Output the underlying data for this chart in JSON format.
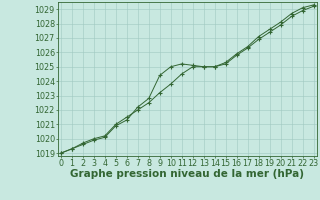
{
  "title": "Graphe pression niveau de la mer (hPa)",
  "hours": [
    0,
    1,
    2,
    3,
    4,
    5,
    6,
    7,
    8,
    9,
    10,
    11,
    12,
    13,
    14,
    15,
    16,
    17,
    18,
    19,
    20,
    21,
    22,
    23
  ],
  "ylim_min": 1018.8,
  "ylim_max": 1029.5,
  "yticks": [
    1019,
    1020,
    1021,
    1022,
    1023,
    1024,
    1025,
    1026,
    1027,
    1028,
    1029
  ],
  "xlim_min": -0.3,
  "xlim_max": 23.3,
  "line1": [
    1019.0,
    1019.3,
    1019.7,
    1020.0,
    1020.2,
    1021.0,
    1021.5,
    1022.0,
    1022.5,
    1023.2,
    1023.8,
    1024.5,
    1025.0,
    1025.0,
    1025.0,
    1025.2,
    1025.8,
    1026.3,
    1026.9,
    1027.4,
    1027.9,
    1028.5,
    1028.9,
    1029.2
  ],
  "line2": [
    1019.0,
    1019.3,
    1019.6,
    1019.9,
    1020.1,
    1020.9,
    1021.3,
    1022.2,
    1022.8,
    1024.4,
    1025.0,
    1025.2,
    1025.1,
    1025.0,
    1025.0,
    1025.3,
    1025.9,
    1026.4,
    1027.1,
    1027.6,
    1028.1,
    1028.7,
    1029.1,
    1029.3
  ],
  "line_color": "#336633",
  "marker": "+",
  "marker_size": 2.5,
  "marker_lw": 0.8,
  "line_width": 0.7,
  "bg_color": "#c8e8e0",
  "grid_color": "#a0c8c0",
  "grid_lw": 0.4,
  "title_color": "#336633",
  "title_fontsize": 7.5,
  "tick_fontsize": 5.8,
  "spine_color": "#336633",
  "spine_lw": 0.6
}
